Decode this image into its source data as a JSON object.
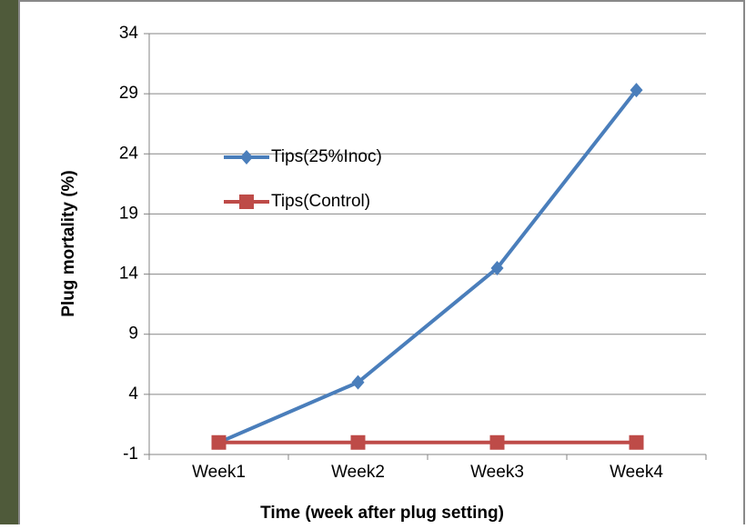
{
  "chart_data": {
    "type": "line",
    "y_label": "Plug mortality (%)",
    "x_label": "Time (week after plug setting)",
    "categories": [
      "Week1",
      "Week2",
      "Week3",
      "Week4"
    ],
    "series": [
      {
        "name": "Tips(25%Inoc)",
        "color": "#4a7ebb",
        "marker": "diamond",
        "values": [
          0,
          5,
          14.5,
          29.3
        ]
      },
      {
        "name": "Tips(Control)",
        "color": "#be4b48",
        "marker": "square",
        "values": [
          0,
          0,
          0,
          0
        ]
      }
    ],
    "ylim": [
      -1,
      34
    ],
    "yticks": [
      -1,
      4,
      9,
      14,
      19,
      24,
      29,
      34
    ],
    "grid": true
  }
}
